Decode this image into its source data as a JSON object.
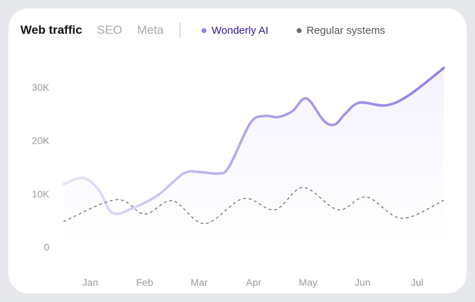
{
  "tabs": [
    {
      "label": "Web traffic",
      "active": true
    },
    {
      "label": "SEO",
      "active": false
    },
    {
      "label": "Meta",
      "active": false
    }
  ],
  "colors": {
    "wonderly": "#8b7fe8",
    "wonderly_text": "#2a1a9e",
    "regular": "#6b6b70",
    "background": "#e6e7ea"
  },
  "chart_data": {
    "type": "line",
    "xlabel": "",
    "ylabel": "",
    "x_ticks": [
      "Jan",
      "Feb",
      "Mar",
      "Apr",
      "May",
      "Jun",
      "Jul"
    ],
    "y_ticks": [
      "0",
      "10K",
      "20K",
      "30K"
    ],
    "ylim": [
      0,
      35000
    ],
    "xlim": [
      0.5,
      7.5
    ],
    "grid": false,
    "legend_placement": "top",
    "series": [
      {
        "name": "Wonderly AI",
        "style": "solid smooth, gradient fill",
        "x": [
          0.51,
          0.87,
          1.16,
          1.41,
          1.8,
          2.25,
          2.71,
          3.0,
          3.35,
          3.55,
          3.94,
          4.2,
          4.45,
          4.71,
          4.97,
          5.29,
          5.49,
          5.68,
          5.94,
          6.43,
          6.85,
          7.49
        ],
        "y": [
          11800,
          13000,
          10700,
          6400,
          7400,
          9800,
          13800,
          14100,
          13800,
          15100,
          23300,
          24600,
          24400,
          25500,
          27900,
          23700,
          23000,
          25000,
          27100,
          26600,
          28500,
          33600
        ]
      },
      {
        "name": "Regular systems",
        "style": "dashed smooth",
        "x": [
          0.51,
          1.48,
          2.0,
          2.51,
          3.1,
          3.81,
          4.39,
          4.91,
          5.55,
          6.07,
          6.72,
          7.49
        ],
        "y": [
          4800,
          8900,
          6200,
          8700,
          4400,
          9100,
          7000,
          11200,
          7000,
          9400,
          5400,
          8800
        ]
      }
    ]
  }
}
